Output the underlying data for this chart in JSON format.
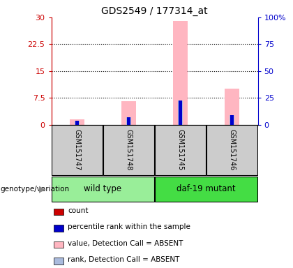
{
  "title": "GDS2549 / 177314_at",
  "samples": [
    "GSM151747",
    "GSM151748",
    "GSM151745",
    "GSM151746"
  ],
  "groups": [
    "wild type",
    "wild type",
    "daf-19 mutant",
    "daf-19 mutant"
  ],
  "ylim_left": [
    0,
    30
  ],
  "ylim_right": [
    0,
    100
  ],
  "yticks_left": [
    0,
    7.5,
    15,
    22.5,
    30
  ],
  "ytick_labels_left": [
    "0",
    "7.5",
    "15",
    "22.5",
    "30"
  ],
  "yticks_right": [
    0,
    25,
    50,
    75,
    100
  ],
  "ytick_labels_right": [
    "0",
    "25",
    "50",
    "75",
    "100%"
  ],
  "left_axis_color": "#CC0000",
  "right_axis_color": "#0000CC",
  "count_values": [
    1.0,
    1.5,
    1.0,
    1.8
  ],
  "percentile_values": [
    3.6,
    6.6,
    22.5,
    9.0
  ],
  "absent_value_values": [
    1.5,
    6.5,
    29.0,
    10.0
  ],
  "absent_rank_values": [
    3.6,
    6.6,
    22.5,
    9.0
  ],
  "count_color": "#CC0000",
  "percentile_color": "#0000CC",
  "absent_value_color": "#FFB6C1",
  "absent_rank_color": "#AABBDD",
  "legend_labels": [
    "count",
    "percentile rank within the sample",
    "value, Detection Call = ABSENT",
    "rank, Detection Call = ABSENT"
  ],
  "legend_colors": [
    "#CC0000",
    "#0000CC",
    "#FFB6C1",
    "#AABBDD"
  ],
  "background_color": "#ffffff",
  "plot_bg_color": "#cccccc",
  "group_colors": {
    "wild type": "#99EE99",
    "daf-19 mutant": "#44DD44"
  },
  "genotype_label": "genotype/variation",
  "title_fontsize": 10,
  "tick_fontsize": 8,
  "legend_fontsize": 7.5,
  "sample_fontsize": 7
}
